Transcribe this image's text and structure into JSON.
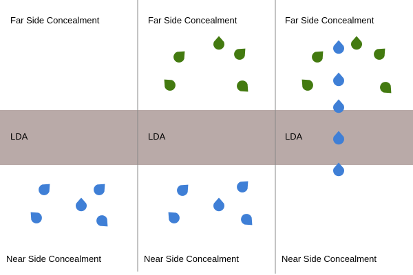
{
  "lda_band_color": "#b9aaa8",
  "divider_color": "#888888",
  "green_color": "#437a10",
  "blue_color": "#3f7fd6",
  "panels": [
    {
      "far_label": "Far Side Concealment",
      "lda_label": "LDA",
      "near_label": "Near Side Concealment",
      "drops": [
        {
          "color": "blue",
          "dir": "up-right"
        },
        {
          "color": "blue",
          "dir": "up-right"
        },
        {
          "color": "blue",
          "dir": "up"
        },
        {
          "color": "blue",
          "dir": "up-left"
        },
        {
          "color": "blue",
          "dir": "down-right"
        }
      ]
    },
    {
      "far_label": "Far Side Concealment",
      "lda_label": "LDA",
      "near_label": "Near Side Concealment",
      "drops": [
        {
          "color": "green",
          "dir": "up-right"
        },
        {
          "color": "green",
          "dir": "up"
        },
        {
          "color": "green",
          "dir": "up-right"
        },
        {
          "color": "green",
          "dir": "up-left"
        },
        {
          "color": "green",
          "dir": "down-right"
        },
        {
          "color": "blue",
          "dir": "up-right"
        },
        {
          "color": "blue",
          "dir": "up-right"
        },
        {
          "color": "blue",
          "dir": "up"
        },
        {
          "color": "blue",
          "dir": "up-left"
        },
        {
          "color": "blue",
          "dir": "down-right"
        }
      ]
    },
    {
      "far_label": "Far Side Concealment",
      "lda_label": "LDA",
      "near_label": "Near Side Concealment",
      "drops": [
        {
          "color": "green",
          "dir": "up-right"
        },
        {
          "color": "green",
          "dir": "up"
        },
        {
          "color": "green",
          "dir": "up-right"
        },
        {
          "color": "green",
          "dir": "up-left"
        },
        {
          "color": "green",
          "dir": "down-right"
        },
        {
          "color": "blue",
          "dir": "up"
        },
        {
          "color": "blue",
          "dir": "up"
        },
        {
          "color": "blue",
          "dir": "up"
        },
        {
          "color": "blue",
          "dir": "up"
        },
        {
          "color": "blue",
          "dir": "up"
        }
      ]
    }
  ]
}
